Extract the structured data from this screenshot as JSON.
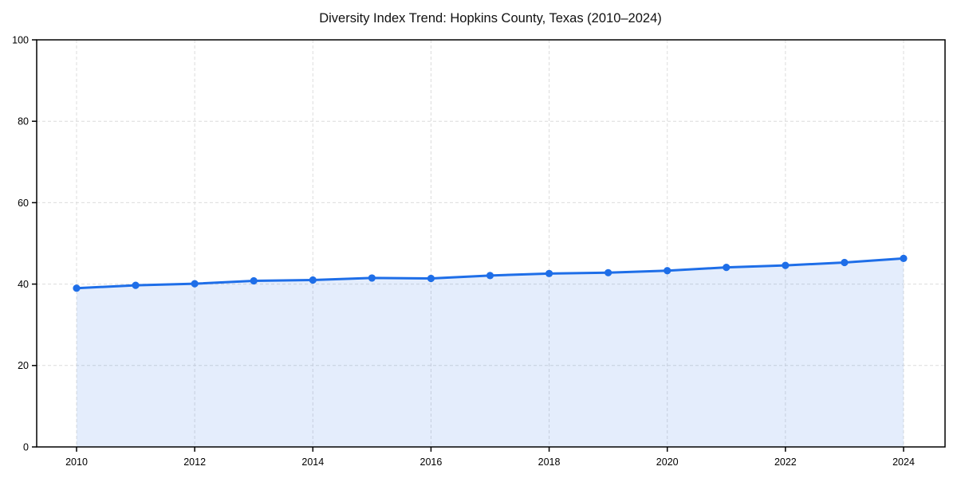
{
  "page": {
    "background": "#ffffff"
  },
  "chart_data": {
    "type": "line",
    "title": "Diversity Index Trend: Hopkins County, Texas (2010–2024)",
    "xlabel": "",
    "ylabel": "",
    "x": [
      2010,
      2011,
      2012,
      2013,
      2014,
      2015,
      2016,
      2017,
      2018,
      2019,
      2020,
      2021,
      2022,
      2023,
      2024
    ],
    "values": [
      39.0,
      39.7,
      40.1,
      40.8,
      41.0,
      41.5,
      41.4,
      42.1,
      42.6,
      42.8,
      43.3,
      44.1,
      44.6,
      45.3,
      46.3
    ],
    "ylim": [
      0,
      100
    ],
    "x_ticks": [
      2010,
      2012,
      2014,
      2016,
      2018,
      2020,
      2022,
      2024
    ],
    "y_ticks": [
      0,
      20,
      40,
      60,
      80,
      100
    ],
    "grid": true,
    "grid_style": "dashed",
    "legend": false,
    "area_fill": true,
    "marker": "circle",
    "colors": {
      "line": "#1e6ee8",
      "fill": "rgba(30,110,232,0.12)",
      "grid": "#dcdcdc",
      "axis": "#000000",
      "text": "#000000"
    }
  }
}
